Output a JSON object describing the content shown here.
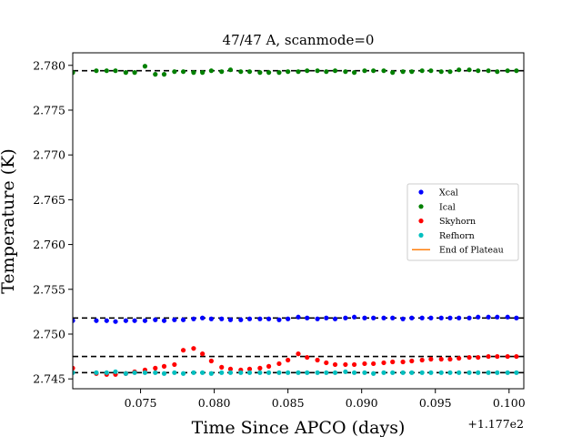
{
  "chart_data": {
    "type": "scatter",
    "title": "47/47 A, scanmode=0",
    "xlabel": "Time Since APCO (days)",
    "ylabel": "Temperature (K)",
    "x_offset_label": "+1.177e2",
    "xlim": [
      0.0704,
      0.101
    ],
    "ylim": [
      2.7439,
      2.7814
    ],
    "x_ticks": [
      0.075,
      0.08,
      0.085,
      0.09,
      0.095,
      0.1
    ],
    "x_tick_labels": [
      "0.075",
      "0.080",
      "0.085",
      "0.090",
      "0.095",
      "0.100"
    ],
    "y_ticks": [
      2.745,
      2.75,
      2.755,
      2.76,
      2.765,
      2.77,
      2.775,
      2.78
    ],
    "y_tick_labels": [
      "2.745",
      "2.750",
      "2.755",
      "2.760",
      "2.765",
      "2.770",
      "2.775",
      "2.780"
    ],
    "grid": false,
    "legend_position": "center-right",
    "x": [
      0.0704,
      0.072,
      0.0727,
      0.0733,
      0.074,
      0.0746,
      0.0753,
      0.076,
      0.0766,
      0.0773,
      0.0779,
      0.0786,
      0.0792,
      0.0798,
      0.0805,
      0.0811,
      0.0818,
      0.0824,
      0.0831,
      0.0837,
      0.0844,
      0.085,
      0.0857,
      0.0863,
      0.087,
      0.0876,
      0.0882,
      0.0889,
      0.0895,
      0.0902,
      0.0908,
      0.0915,
      0.0921,
      0.0928,
      0.0934,
      0.0941,
      0.0947,
      0.0954,
      0.096,
      0.0966,
      0.0973,
      0.0979,
      0.0986,
      0.0992,
      0.0999,
      0.1005
    ],
    "series": [
      {
        "name": "Xcal",
        "color": "#0000ff",
        "values": [
          2.7515,
          2.7515,
          2.7515,
          2.7514,
          2.7515,
          2.7515,
          2.7515,
          2.7516,
          2.7515,
          2.7516,
          2.7516,
          2.7517,
          2.7518,
          2.7517,
          2.7517,
          2.7516,
          2.7516,
          2.7517,
          2.7517,
          2.7517,
          2.7516,
          2.7517,
          2.7519,
          2.7518,
          2.7517,
          2.7518,
          2.7517,
          2.7518,
          2.7519,
          2.7518,
          2.7518,
          2.7518,
          2.7518,
          2.7517,
          2.7518,
          2.7518,
          2.7518,
          2.7518,
          2.7518,
          2.7518,
          2.7518,
          2.7519,
          2.7519,
          2.7519,
          2.7519,
          2.7518
        ]
      },
      {
        "name": "Ical",
        "color": "#008000",
        "values": [
          2.7792,
          2.7794,
          2.7794,
          2.7794,
          2.7792,
          2.7792,
          2.7799,
          2.779,
          2.779,
          2.7793,
          2.7793,
          2.7792,
          2.7792,
          2.7794,
          2.7793,
          2.7795,
          2.7793,
          2.7793,
          2.7792,
          2.7792,
          2.7792,
          2.7793,
          2.7793,
          2.7794,
          2.7794,
          2.7793,
          2.7794,
          2.7793,
          2.7792,
          2.7794,
          2.7794,
          2.7794,
          2.7792,
          2.7793,
          2.7793,
          2.7794,
          2.7794,
          2.7793,
          2.7793,
          2.7795,
          2.7795,
          2.7794,
          2.7794,
          2.7793,
          2.7794,
          2.7794
        ]
      },
      {
        "name": "Skyhorn",
        "color": "#ff0000",
        "values": [
          2.7462,
          2.7456,
          2.7455,
          2.7455,
          2.7456,
          2.7458,
          2.746,
          2.7462,
          2.7464,
          2.7466,
          2.7482,
          2.7484,
          2.7478,
          2.747,
          2.7463,
          2.7461,
          2.746,
          2.7461,
          2.7462,
          2.7464,
          2.7467,
          2.7471,
          2.7478,
          2.7474,
          2.7471,
          2.7468,
          2.7466,
          2.7466,
          2.7466,
          2.7467,
          2.7467,
          2.7468,
          2.7469,
          2.7469,
          2.747,
          2.7471,
          2.7472,
          2.7472,
          2.7472,
          2.7473,
          2.7474,
          2.7474,
          2.7475,
          2.7475,
          2.7475,
          2.7475
        ]
      },
      {
        "name": "Refhorn",
        "color": "#00bfbf",
        "values": [
          2.7457,
          2.7457,
          2.7457,
          2.7458,
          2.7456,
          2.7457,
          2.7457,
          2.7457,
          2.7456,
          2.7457,
          2.7456,
          2.7457,
          2.7457,
          2.7456,
          2.7457,
          2.7457,
          2.7457,
          2.7457,
          2.7457,
          2.7457,
          2.7457,
          2.7457,
          2.7457,
          2.7457,
          2.7457,
          2.7457,
          2.7457,
          2.7458,
          2.7457,
          2.7457,
          2.7456,
          2.7457,
          2.7457,
          2.7457,
          2.7457,
          2.7457,
          2.7457,
          2.7457,
          2.7457,
          2.7457,
          2.7457,
          2.7457,
          2.7457,
          2.7457,
          2.7457,
          2.7457
        ]
      }
    ],
    "reference_lines": [
      2.7794,
      2.7518,
      2.7475,
      2.7457
    ],
    "reference_line_color": "#000000",
    "legend": [
      {
        "label": "Xcal",
        "color": "#0000ff",
        "marker": "dot"
      },
      {
        "label": "Ical",
        "color": "#008000",
        "marker": "dot"
      },
      {
        "label": "Skyhorn",
        "color": "#ff0000",
        "marker": "dot"
      },
      {
        "label": "Refhorn",
        "color": "#00bfbf",
        "marker": "dot"
      },
      {
        "label": "End of Plateau",
        "color": "#ff7f0e",
        "marker": "line"
      }
    ]
  }
}
